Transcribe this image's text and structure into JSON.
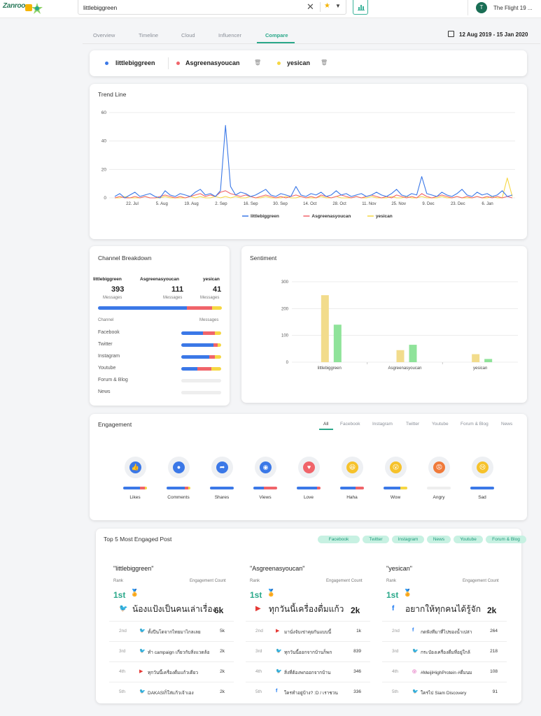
{
  "header": {
    "logo_text": "Zanroo",
    "search_value": "littlebiggreen",
    "user_initial": "T",
    "user_name": "The Flight 19 ..."
  },
  "nav": {
    "tabs": [
      "Overview",
      "Timeline",
      "Cloud",
      "Influencer",
      "Compare"
    ],
    "active": "Compare",
    "date_range": "12 Aug 2019 - 15 Jan 2020"
  },
  "compare": {
    "entities": [
      {
        "name": "littlebiggreen",
        "color": "#3b78e7"
      },
      {
        "name": "Asgreenasyoucan",
        "color": "#f0646a"
      },
      {
        "name": "yesican",
        "color": "#f6d743"
      }
    ]
  },
  "trend": {
    "title": "Trend Line",
    "chart_data": {
      "type": "line",
      "y_ticks": [
        0,
        20,
        40,
        60
      ],
      "ylim": [
        0,
        60
      ],
      "x_ticks": [
        "22. Jul",
        "5. Aug",
        "19. Aug",
        "2. Sep",
        "16. Sep",
        "30. Sep",
        "14. Oct",
        "28. Oct",
        "11. Nov",
        "25. Nov",
        "9. Dec",
        "23. Dec",
        "6. Jan"
      ],
      "series": [
        {
          "name": "littlebiggreen",
          "color": "#3b78e7",
          "values": [
            1,
            3,
            0,
            2,
            4,
            1,
            2,
            3,
            1,
            0,
            5,
            2,
            1,
            3,
            2,
            1,
            4,
            6,
            2,
            3,
            1,
            5,
            51,
            8,
            2,
            4,
            3,
            1,
            2,
            4,
            6,
            2,
            1,
            3,
            2,
            1,
            8,
            2,
            1,
            3,
            2,
            4,
            1,
            2,
            5,
            2,
            3,
            1,
            2,
            3,
            1,
            2,
            4,
            2,
            1,
            3,
            6,
            2,
            1,
            3,
            2,
            15,
            3,
            2,
            1,
            4,
            2,
            1,
            3,
            6,
            2,
            1,
            4,
            2,
            3,
            1,
            2,
            5,
            1,
            2
          ]
        },
        {
          "name": "Asgreenasyoucan",
          "color": "#f0646a",
          "values": [
            0,
            1,
            0,
            0,
            1,
            0,
            1,
            0,
            0,
            1,
            2,
            1,
            0,
            1,
            0,
            1,
            2,
            3,
            1,
            2,
            1,
            4,
            5,
            3,
            2,
            1,
            2,
            1,
            0,
            1,
            2,
            1,
            0,
            1,
            0,
            1,
            2,
            1,
            0,
            1,
            0,
            2,
            1,
            0,
            1,
            2,
            1,
            0,
            1,
            0,
            1,
            2,
            1,
            0,
            1,
            0,
            2,
            1,
            0,
            1,
            0,
            3,
            1,
            0,
            1,
            2,
            1,
            0,
            1,
            0,
            1,
            0,
            1,
            0,
            1,
            0,
            1,
            0,
            1,
            0
          ]
        },
        {
          "name": "yesican",
          "color": "#f6d743",
          "values": [
            0,
            0,
            1,
            0,
            0,
            0,
            1,
            0,
            0,
            0,
            1,
            0,
            0,
            0,
            0,
            1,
            0,
            1,
            0,
            0,
            1,
            0,
            1,
            0,
            1,
            0,
            0,
            1,
            0,
            0,
            1,
            0,
            0,
            0,
            1,
            0,
            0,
            1,
            0,
            0,
            0,
            1,
            0,
            0,
            1,
            0,
            0,
            0,
            1,
            0,
            0,
            1,
            0,
            0,
            0,
            1,
            0,
            0,
            1,
            0,
            0,
            1,
            0,
            0,
            0,
            1,
            0,
            0,
            1,
            0,
            0,
            0,
            1,
            0,
            0,
            1,
            0,
            0,
            14,
            1
          ]
        }
      ]
    }
  },
  "channel": {
    "title": "Channel Breakdown",
    "entities": [
      {
        "name": "littlebiggreen",
        "count": "393",
        "unit": "Messages"
      },
      {
        "name": "Asgreenasyoucan",
        "count": "111",
        "unit": "Messages"
      },
      {
        "name": "yesican",
        "count": "41",
        "unit": "Messages"
      }
    ],
    "total_split": [
      72,
      20,
      8
    ],
    "col_channel": "Channel",
    "col_messages": "Messages",
    "rows": [
      {
        "name": "Facebook",
        "split": [
          55,
          30,
          15
        ]
      },
      {
        "name": "Twitter",
        "split": [
          80,
          12,
          8
        ]
      },
      {
        "name": "Instagram",
        "split": [
          70,
          15,
          15
        ]
      },
      {
        "name": "Youtube",
        "split": [
          40,
          35,
          25
        ]
      },
      {
        "name": "Forum & Blog",
        "split": [
          0,
          0,
          0
        ]
      },
      {
        "name": "News",
        "split": [
          0,
          0,
          0
        ]
      }
    ]
  },
  "sentiment": {
    "title": "Sentiment",
    "chart_data": {
      "type": "bar",
      "categories": [
        "littlebiggreen",
        "Asgreenasyoucan",
        "yesican"
      ],
      "y_ticks": [
        0,
        100,
        200,
        300
      ],
      "ylim": [
        0,
        300
      ],
      "series": [
        {
          "color": "#f2dc8c",
          "values": [
            250,
            45,
            30
          ]
        },
        {
          "color": "#8fe39a",
          "values": [
            140,
            65,
            12
          ]
        }
      ]
    }
  },
  "engagement": {
    "title": "Engagement",
    "tabs": [
      "All",
      "Facebook",
      "Instagram",
      "Twitter",
      "Youtube",
      "Forum & Blog",
      "News"
    ],
    "active_tab": "All",
    "items": [
      {
        "label": "Likes",
        "icon": "like-icon",
        "glyph": "👍",
        "color": "#3b78e7",
        "split": [
          70,
          20,
          10
        ]
      },
      {
        "label": "Comments",
        "icon": "comment-icon",
        "glyph": "●",
        "color": "#3b78e7",
        "split": [
          75,
          15,
          10
        ]
      },
      {
        "label": "Shares",
        "icon": "share-icon",
        "glyph": "➦",
        "color": "#3b78e7",
        "split": [
          100,
          0,
          0
        ]
      },
      {
        "label": "Views",
        "icon": "view-icon",
        "glyph": "◉",
        "color": "#3b78e7",
        "split": [
          45,
          55,
          0
        ]
      },
      {
        "label": "Love",
        "icon": "love-icon",
        "glyph": "♥",
        "color": "#f0646a",
        "split": [
          85,
          15,
          0
        ]
      },
      {
        "label": "Haha",
        "icon": "haha-icon",
        "glyph": "😆",
        "color": "#f6c22b",
        "split": [
          65,
          35,
          0
        ]
      },
      {
        "label": "Wow",
        "icon": "wow-icon",
        "glyph": "😮",
        "color": "#f6c22b",
        "split": [
          72,
          0,
          28
        ]
      },
      {
        "label": "Angry",
        "icon": "angry-icon",
        "glyph": "😡",
        "color": "#f07a3a",
        "split": [
          0,
          0,
          0
        ]
      },
      {
        "label": "Sad",
        "icon": "sad-icon",
        "glyph": "😢",
        "color": "#f6c22b",
        "split": [
          100,
          0,
          0
        ]
      }
    ]
  },
  "top_posts": {
    "title": "Top 5 Most Engaged Post",
    "chips": [
      "Facebook",
      "Twitter",
      "Instagram",
      "News",
      "Youtube",
      "Forum & Blog"
    ],
    "col_rank": "Rank",
    "col_count": "Engagement Count",
    "columns": [
      {
        "name": "\"littlebiggreen\"",
        "top": {
          "rank": "1st",
          "platform": "twitter",
          "text": "น้องแป้งเป็นคนเล่าเรื่อง",
          "count": "6k"
        },
        "rows": [
          {
            "rank": "2nd",
            "platform": "twitter",
            "text": "ทั้งปีนโดจากไทยมาไกลเลย",
            "count": "5k"
          },
          {
            "rank": "3rd",
            "platform": "twitter",
            "text": "ทำ campaign เกี่ยวกับสิ่งแวดล้อม",
            "count": "2k"
          },
          {
            "rank": "4th",
            "platform": "youtube",
            "text": "ทุกวันนี้เครื่องดื่มแก้วเดียว",
            "count": "2k"
          },
          {
            "rank": "5th",
            "platform": "twitter",
            "text": "DAKASIก็ใส่แก้วเจ้าเอง",
            "count": "2k"
          }
        ]
      },
      {
        "name": "\"Asgreenasyoucan\"",
        "top": {
          "rank": "1st",
          "platform": "youtube",
          "text": "ทุกวันนี้เครื่องดื่มแก้ว",
          "count": "2k"
        },
        "rows": [
          {
            "rank": "2nd",
            "platform": "youtube",
            "text": "มานั่งจับเข่าคุยกันแบบนี้",
            "count": "1k"
          },
          {
            "rank": "3rd",
            "platform": "twitter",
            "text": "ทุกวันนี้ออกจากบ้านก็พก",
            "count": "839"
          },
          {
            "rank": "4th",
            "platform": "twitter",
            "text": "สิ่งที่ต้องพกออกจากบ้าน",
            "count": "346"
          },
          {
            "rank": "5th",
            "platform": "facebook",
            "text": "ใครทำอยู่บ้าง? :D / เราชวน",
            "count": "336"
          }
        ]
      },
      {
        "name": "\"yesican\"",
        "top": {
          "rank": "1st",
          "platform": "facebook",
          "text": "อยากให้ทุกคนได้รู้จัก",
          "count": "2k"
        },
        "rows": [
          {
            "rank": "2nd",
            "platform": "facebook",
            "text": "กดฟังทีมาที่ไปของน้ำเปล่า",
            "count": "264"
          },
          {
            "rank": "3rd",
            "platform": "twitter",
            "text": "กระป๋องเครื่องดื่มที่อยู่ใกล้",
            "count": "218"
          },
          {
            "rank": "4th",
            "platform": "instagram",
            "text": "#MeijiHighProtein #ดื่มนม",
            "count": "108"
          },
          {
            "rank": "5th",
            "platform": "twitter",
            "text": "ใครไป Siam Discovery",
            "count": "91"
          }
        ]
      }
    ]
  }
}
